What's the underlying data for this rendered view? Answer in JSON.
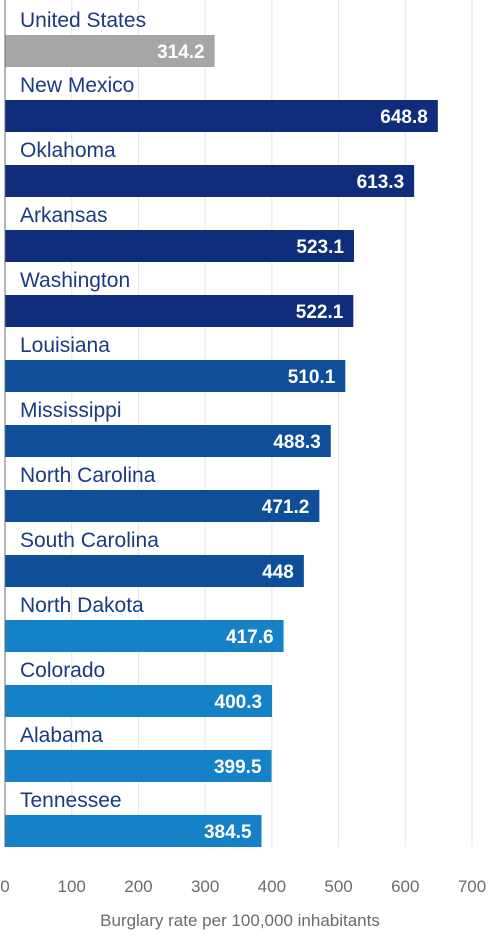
{
  "chart_data": {
    "type": "bar",
    "orientation": "horizontal",
    "categories": [
      "United States",
      "New Mexico",
      "Oklahoma",
      "Arkansas",
      "Washington",
      "Louisiana",
      "Mississippi",
      "North Carolina",
      "South Carolina",
      "North Dakota",
      "Colorado",
      "Alabama",
      "Tennessee"
    ],
    "values": [
      314.2,
      648.8,
      613.3,
      523.1,
      522.1,
      510.1,
      488.3,
      471.2,
      448,
      417.6,
      400.3,
      399.5,
      384.5
    ],
    "value_labels": [
      "314.2",
      "648.8",
      "613.3",
      "523.1",
      "522.1",
      "510.1",
      "488.3",
      "471.2",
      "448",
      "417.6",
      "400.3",
      "399.5",
      "384.5"
    ],
    "bar_colors": [
      "#a6a6a6",
      "#0f2d7a",
      "#0f2d7a",
      "#0f2d7a",
      "#0f2d7a",
      "#0f4f99",
      "#0f4f99",
      "#0f4f99",
      "#0f4f99",
      "#1581c6",
      "#1581c6",
      "#1581c6",
      "#1581c6"
    ],
    "title": "",
    "xlabel": "Burglary rate per 100,000 inhabitants",
    "ylabel": "",
    "xlim": [
      0,
      700
    ],
    "x_ticks": [
      0,
      100,
      200,
      300,
      400,
      500,
      600,
      700
    ],
    "x_tick_labels": [
      "0",
      "100",
      "200",
      "300",
      "400",
      "500",
      "600",
      "700"
    ],
    "grid": true,
    "legend": "none"
  },
  "colors": {
    "label_text": "#1b3a82",
    "value_text": "#ffffff",
    "axis_text": "#6b6b6b",
    "gridline": "#e6e6e6"
  }
}
